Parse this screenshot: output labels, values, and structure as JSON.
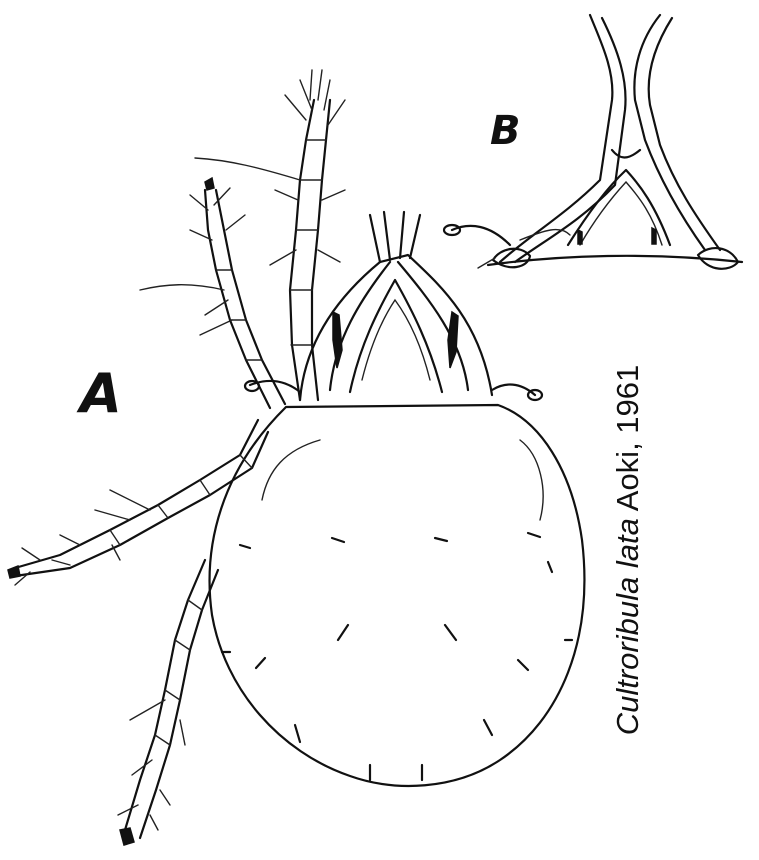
{
  "figure": {
    "panel_a_label": "A",
    "panel_b_label": "B",
    "caption": {
      "genus": "Cultroribula",
      "species": "lata",
      "authority": "Aoki, 1961"
    }
  },
  "colors": {
    "ink": "#111111",
    "background": "#ffffff"
  }
}
